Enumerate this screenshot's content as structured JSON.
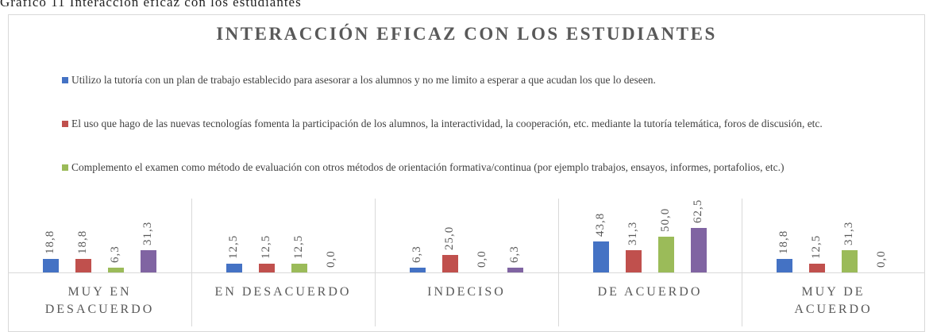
{
  "caption": "Gráfico 11 Interacción eficaz con los estudiantes",
  "chart_data": {
    "type": "bar",
    "title": "INTERACCIÓN EFICAZ CON LOS ESTUDIANTES",
    "categories": [
      "MUY EN\nDESACUERDO",
      "EN DESACUERDO",
      "INDECISO",
      "DE ACUERDO",
      "MUY DE\nACUERDO"
    ],
    "ylim": [
      0,
      70
    ],
    "series": [
      {
        "name": "Utilizo la tutoría con un plan de trabajo establecido para asesorar a los alumnos y no me limito a esperar a que acudan los que lo deseen.",
        "color": "#4472c4",
        "values": [
          18.8,
          12.5,
          6.3,
          43.8,
          18.8
        ],
        "value_labels": [
          "18,8",
          "12,5",
          "6,3",
          "43,8",
          "18,8"
        ]
      },
      {
        "name": "El uso que hago de las nuevas tecnologías fomenta la participación de los alumnos, la interactividad, la cooperación, etc. mediante la tutoría telemática, foros de discusión, etc.",
        "color": "#c0504d",
        "values": [
          18.8,
          12.5,
          25.0,
          31.3,
          12.5
        ],
        "value_labels": [
          "18,8",
          "12,5",
          "25,0",
          "31,3",
          "12,5"
        ]
      },
      {
        "name": "Complemento el examen como método de evaluación con otros métodos de orientación formativa/continua (por ejemplo trabajos, ensayos, informes, portafolios, etc.)",
        "color": "#9bbb59",
        "values": [
          6.3,
          12.5,
          0.0,
          50.0,
          31.3
        ],
        "value_labels": [
          "6,3",
          "12,5",
          "0,0",
          "50,0",
          "31,3"
        ]
      },
      {
        "color": "#8064a2",
        "values": [
          31.3,
          0.0,
          6.3,
          62.5,
          0.0
        ],
        "value_labels": [
          "31,3",
          "0,0",
          "6,3",
          "62,5",
          "0,0"
        ]
      }
    ]
  }
}
